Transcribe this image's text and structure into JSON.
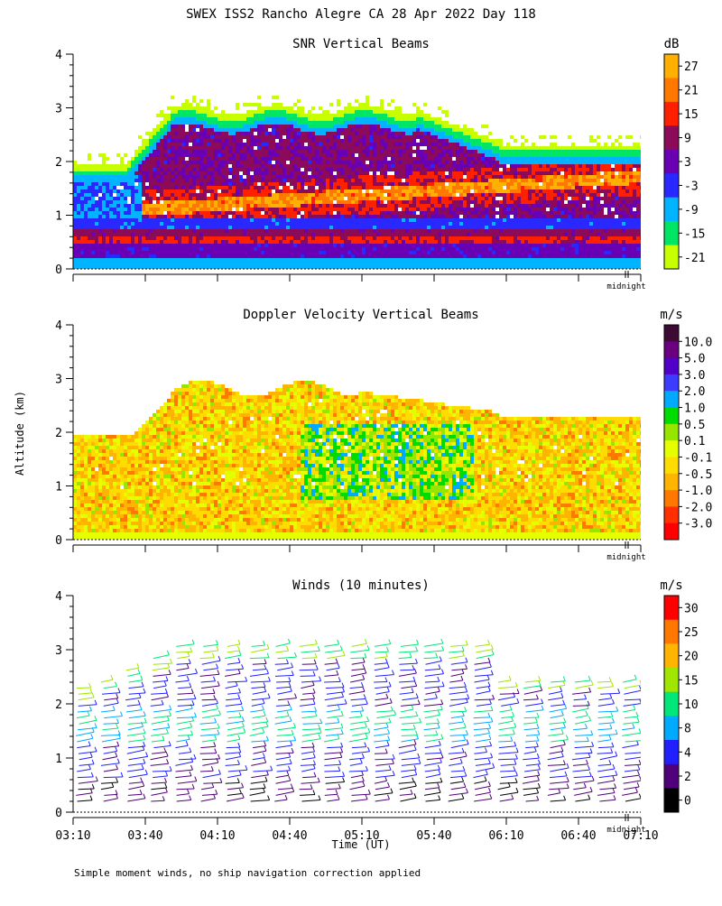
{
  "page_title": "SWEX ISS2 Rancho Alegre CA  28 Apr 2022 Day 118",
  "y_axis_label": "Altitude (km)",
  "x_axis_label": "Time (UT)",
  "midnight_label": "midnight",
  "footnote": "Simple moment winds, no ship navigation correction applied",
  "chart_data": [
    {
      "type": "heatmap",
      "title": "SNR Vertical Beams",
      "unit": "dB",
      "ylim": [
        0,
        4
      ],
      "yticks": [
        "0",
        "1",
        "2",
        "3",
        "4"
      ],
      "colorbar_labels": [
        "27",
        "21",
        "15",
        "9",
        "3",
        "-3",
        "-9",
        "-15",
        "-21"
      ],
      "colorbar_colors": [
        "#ffb000",
        "#ff7800",
        "#ff2000",
        "#8c0a5a",
        "#6a00b4",
        "#2828ff",
        "#00b4ff",
        "#00e664",
        "#c8ff00"
      ]
    },
    {
      "type": "heatmap",
      "title": "Doppler Velocity Vertical Beams",
      "unit": "m/s",
      "ylim": [
        0,
        4
      ],
      "yticks": [
        "0",
        "1",
        "2",
        "3",
        "4"
      ],
      "colorbar_labels": [
        "10.0",
        "5.0",
        "3.0",
        "2.0",
        "1.0",
        "0.5",
        "0.1",
        "-0.1",
        "-0.5",
        "-1.0",
        "-2.0",
        "-3.0"
      ],
      "colorbar_colors": [
        "#3c0a32",
        "#6a0080",
        "#5000c8",
        "#3c3cff",
        "#00aaff",
        "#00dc00",
        "#96e600",
        "#e6ff00",
        "#ffdc00",
        "#ffb400",
        "#ff7800",
        "#ff3000",
        "#ff0000"
      ]
    },
    {
      "type": "scatter",
      "title": "Winds (10 minutes)",
      "unit": "m/s",
      "ylim": [
        0,
        4
      ],
      "yticks": [
        "0",
        "1",
        "2",
        "3",
        "4"
      ],
      "xticks": [
        "03:10",
        "03:40",
        "04:10",
        "04:40",
        "05:10",
        "05:40",
        "06:10",
        "06:40",
        "07:10"
      ],
      "colorbar_labels": [
        "30",
        "25",
        "20",
        "15",
        "10",
        "8",
        "4",
        "2",
        "0"
      ],
      "colorbar_colors": [
        "#ff0000",
        "#ff7800",
        "#ffb400",
        "#a0e600",
        "#00e678",
        "#00aaff",
        "#2020ff",
        "#50007a",
        "#000000"
      ]
    }
  ]
}
